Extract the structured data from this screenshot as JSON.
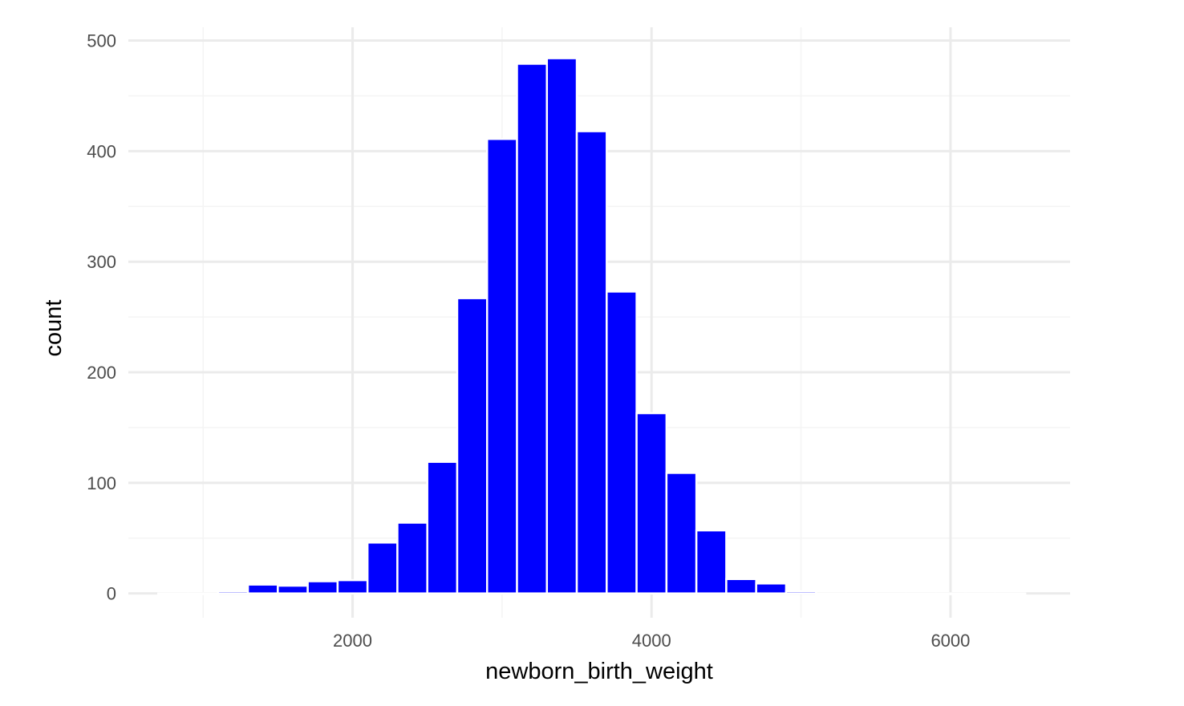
{
  "chart_data": {
    "type": "bar",
    "variant": "histogram",
    "title": "",
    "xlabel": "newborn_birth_weight",
    "ylabel": "count",
    "xlim": [
      500,
      6800
    ],
    "ylim": [
      -22,
      512
    ],
    "x_ticks": [
      2000,
      4000,
      6000
    ],
    "y_ticks": [
      0,
      100,
      200,
      300,
      400,
      500
    ],
    "grid": true,
    "legend": "none",
    "bin_width": 200,
    "bins": [
      {
        "x_start": 700,
        "x_end": 900,
        "count": 0
      },
      {
        "x_start": 900,
        "x_end": 1100,
        "count": 0
      },
      {
        "x_start": 1100,
        "x_end": 1300,
        "count": 2
      },
      {
        "x_start": 1300,
        "x_end": 1500,
        "count": 8
      },
      {
        "x_start": 1500,
        "x_end": 1700,
        "count": 7
      },
      {
        "x_start": 1700,
        "x_end": 1900,
        "count": 11
      },
      {
        "x_start": 1900,
        "x_end": 2100,
        "count": 12
      },
      {
        "x_start": 2100,
        "x_end": 2300,
        "count": 46
      },
      {
        "x_start": 2300,
        "x_end": 2500,
        "count": 64
      },
      {
        "x_start": 2500,
        "x_end": 2700,
        "count": 119
      },
      {
        "x_start": 2700,
        "x_end": 2900,
        "count": 267
      },
      {
        "x_start": 2900,
        "x_end": 3100,
        "count": 411
      },
      {
        "x_start": 3100,
        "x_end": 3300,
        "count": 479
      },
      {
        "x_start": 3300,
        "x_end": 3500,
        "count": 484
      },
      {
        "x_start": 3500,
        "x_end": 3700,
        "count": 418
      },
      {
        "x_start": 3700,
        "x_end": 3900,
        "count": 273
      },
      {
        "x_start": 3900,
        "x_end": 4100,
        "count": 163
      },
      {
        "x_start": 4100,
        "x_end": 4300,
        "count": 109
      },
      {
        "x_start": 4300,
        "x_end": 4500,
        "count": 57
      },
      {
        "x_start": 4500,
        "x_end": 4700,
        "count": 13
      },
      {
        "x_start": 4700,
        "x_end": 4900,
        "count": 9
      },
      {
        "x_start": 4900,
        "x_end": 5100,
        "count": 2
      },
      {
        "x_start": 5100,
        "x_end": 5300,
        "count": 0
      },
      {
        "x_start": 5300,
        "x_end": 5500,
        "count": 0
      },
      {
        "x_start": 5500,
        "x_end": 5700,
        "count": 0
      },
      {
        "x_start": 5700,
        "x_end": 5900,
        "count": 0
      },
      {
        "x_start": 5900,
        "x_end": 6100,
        "count": 0
      },
      {
        "x_start": 6100,
        "x_end": 6300,
        "count": 0
      },
      {
        "x_start": 6300,
        "x_end": 6500,
        "count": 0
      }
    ],
    "colors": {
      "bar_fill": "#0000ff",
      "bar_outline": "#ffffff",
      "grid_major": "#ebebeb",
      "grid_minor": "#f4f4f4",
      "tick_text": "#4d4d4d",
      "axis_title": "#000000"
    }
  }
}
